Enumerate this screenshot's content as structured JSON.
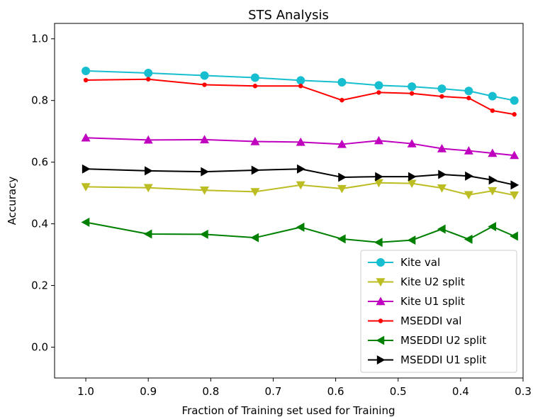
{
  "chart_data": {
    "type": "line",
    "title": "STS Analysis",
    "xlabel": "Fraction of Training set used for Training",
    "ylabel": "Accuracy",
    "xlim": [
      1.05,
      0.3
    ],
    "ylim": [
      -0.1,
      1.05
    ],
    "x_ticks": [
      1.0,
      0.9,
      0.8,
      0.7,
      0.6,
      0.5,
      0.4,
      0.3
    ],
    "x_tick_labels": [
      "1.0",
      "0.9",
      "0.8",
      "0.7",
      "0.6",
      "0.5",
      "0.4",
      "0.3"
    ],
    "y_ticks": [
      0.0,
      0.2,
      0.4,
      0.6,
      0.8,
      1.0
    ],
    "y_tick_labels": [
      "0.0",
      "0.2",
      "0.4",
      "0.6",
      "0.8",
      "1.0"
    ],
    "grid": false,
    "legend_position": "lower-right",
    "x": [
      1.0,
      0.9,
      0.81,
      0.729,
      0.656,
      0.59,
      0.531,
      0.478,
      0.43,
      0.387,
      0.349,
      0.314
    ],
    "series": [
      {
        "name": "Kite val",
        "color": "#17becf",
        "marker": "circle",
        "values": [
          0.896,
          0.889,
          0.881,
          0.874,
          0.865,
          0.859,
          0.849,
          0.845,
          0.838,
          0.831,
          0.814,
          0.8
        ]
      },
      {
        "name": "Kite U2 split",
        "color": "#bcbd22",
        "marker": "triangle-down",
        "values": [
          0.52,
          0.517,
          0.509,
          0.504,
          0.526,
          0.514,
          0.533,
          0.531,
          0.516,
          0.494,
          0.507,
          0.493
        ]
      },
      {
        "name": "Kite U1 split",
        "color": "#bf00bf",
        "marker": "triangle-up",
        "values": [
          0.679,
          0.672,
          0.673,
          0.667,
          0.665,
          0.658,
          0.67,
          0.66,
          0.644,
          0.637,
          0.629,
          0.622
        ]
      },
      {
        "name": "MSEDDI val",
        "color": "#ff0000",
        "marker": "dot",
        "values": [
          0.866,
          0.869,
          0.851,
          0.847,
          0.847,
          0.801,
          0.826,
          0.823,
          0.813,
          0.808,
          0.767,
          0.755
        ]
      },
      {
        "name": "MSEDDI U2 split",
        "color": "#008000",
        "marker": "triangle-left",
        "values": [
          0.405,
          0.367,
          0.366,
          0.355,
          0.389,
          0.351,
          0.34,
          0.347,
          0.383,
          0.35,
          0.391,
          0.36
        ]
      },
      {
        "name": "MSEDDI U1 split",
        "color": "#000000",
        "marker": "triangle-right",
        "values": [
          0.578,
          0.572,
          0.569,
          0.574,
          0.578,
          0.551,
          0.553,
          0.553,
          0.56,
          0.555,
          0.542,
          0.526
        ]
      }
    ]
  }
}
